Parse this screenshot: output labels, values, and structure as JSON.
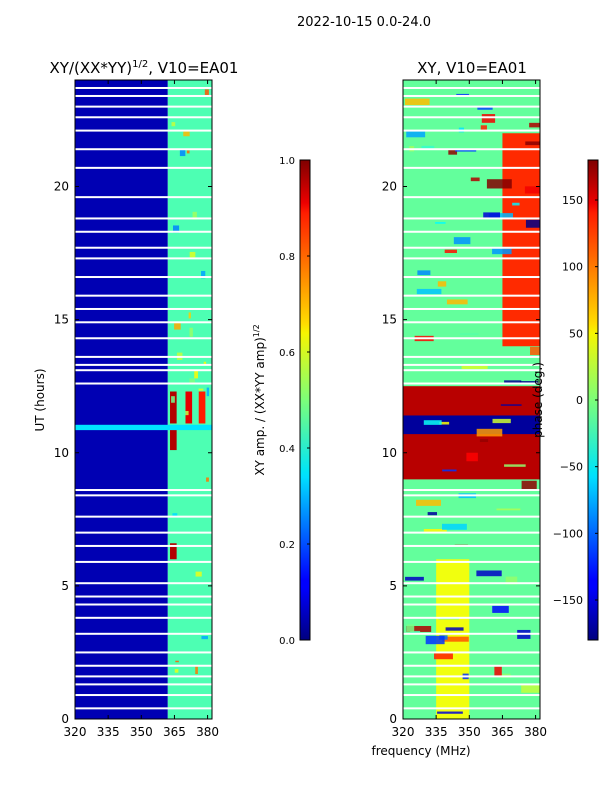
{
  "chart_data": {
    "type": "heatmap",
    "suptitle": "2022-10-15 0.0-24.0",
    "shared_xlabel": "frequency (MHz)",
    "panels": [
      {
        "title_main": "XY/(XX*YY)",
        "title_sup": "1/2",
        "title_tail": ", V10=EA01",
        "xlabel": "",
        "ylabel": "UT (hours)",
        "xlim": [
          320,
          382
        ],
        "ylim": [
          0,
          24
        ],
        "xticks": [
          "320",
          "335",
          "350",
          "365",
          "380"
        ],
        "xtick_values": [
          320,
          335,
          350,
          365,
          380
        ],
        "yticks": [
          "0",
          "5",
          "10",
          "15",
          "20"
        ],
        "ytick_values": [
          0,
          5,
          10,
          15,
          20
        ],
        "colorbar": {
          "label_main": "XY amp. / (XX*YY amp)",
          "label_sup": "1/2",
          "range": [
            0.0,
            1.0
          ],
          "ticks": [
            "0.0",
            "0.2",
            "0.4",
            "0.6",
            "0.8",
            "1.0"
          ],
          "tick_values": [
            0.0,
            0.2,
            0.4,
            0.6,
            0.8,
            1.0
          ],
          "colormap": "jet"
        },
        "approx_cells": [
          {
            "freq_range": [
              320,
              362
            ],
            "ut_range": [
              0,
              24
            ],
            "value": 0.05
          },
          {
            "freq_range": [
              362,
              382
            ],
            "ut_range": [
              0,
              24
            ],
            "value": 0.45
          },
          {
            "freq_range": [
              363,
              366
            ],
            "ut_range": [
              6.0,
              6.6
            ],
            "value": 0.95
          },
          {
            "freq_range": [
              363,
              366
            ],
            "ut_range": [
              10.1,
              10.9
            ],
            "value": 0.95
          },
          {
            "freq_range": [
              363,
              366
            ],
            "ut_range": [
              11.1,
              12.3
            ],
            "value": 0.95
          },
          {
            "freq_range": [
              370,
              373
            ],
            "ut_range": [
              11.1,
              12.3
            ],
            "value": 0.9
          },
          {
            "freq_range": [
              376,
              379
            ],
            "ut_range": [
              11.1,
              12.3
            ],
            "value": 0.85
          },
          {
            "freq_range": [
              320,
              382
            ],
            "ut_range": [
              10.85,
              11.05
            ],
            "value": 0.35
          }
        ],
        "flagged_ut_hours": [
          0.4,
          0.9,
          1.3,
          1.6,
          2.0,
          2.5,
          3.2,
          3.8,
          4.3,
          4.6,
          5.1,
          5.9,
          6.5,
          7.0,
          7.6,
          8.4,
          8.6,
          12.6,
          13.1,
          13.3,
          13.6,
          14.3,
          14.9,
          15.4,
          15.9,
          16.6,
          17.3,
          17.7,
          18.3,
          18.8,
          19.6,
          20.7,
          21.4,
          22.1,
          22.6,
          23.0,
          23.4,
          23.7
        ]
      },
      {
        "title_main": "XY, V10=EA01",
        "title_sup": "",
        "title_tail": "",
        "xlabel": "",
        "ylabel": "",
        "xlim": [
          320,
          382
        ],
        "ylim": [
          0,
          24
        ],
        "xticks": [
          "320",
          "335",
          "350",
          "365",
          "380"
        ],
        "xtick_values": [
          320,
          335,
          350,
          365,
          380
        ],
        "yticks": [
          "0",
          "5",
          "10",
          "15",
          "20"
        ],
        "ytick_values": [
          0,
          5,
          10,
          15,
          20
        ],
        "colorbar": {
          "label_main": "phase (deg.)",
          "label_sup": "",
          "range": [
            -180,
            180
          ],
          "ticks": [
            "−150",
            "−100",
            "−50",
            "0",
            "50",
            "100",
            "150"
          ],
          "tick_values": [
            -150,
            -100,
            -50,
            0,
            50,
            100,
            150
          ],
          "colormap": "jet"
        },
        "approx_cells": [
          {
            "freq_range": [
              320,
              382
            ],
            "ut_range": [
              0,
              24
            ],
            "value": -10
          },
          {
            "freq_range": [
              320,
              382
            ],
            "ut_range": [
              9.0,
              12.5
            ],
            "value": 160
          },
          {
            "freq_range": [
              320,
              382
            ],
            "ut_range": [
              10.7,
              11.4
            ],
            "value": -170
          },
          {
            "freq_range": [
              335,
              350
            ],
            "ut_range": [
              0,
              6
            ],
            "value": 40
          },
          {
            "freq_range": [
              365,
              382
            ],
            "ut_range": [
              14,
              22
            ],
            "value": 120
          }
        ],
        "flagged_ut_hours": [
          0.4,
          0.9,
          1.3,
          1.6,
          2.0,
          2.5,
          3.2,
          3.8,
          4.3,
          4.6,
          5.1,
          5.9,
          6.5,
          7.0,
          7.6,
          8.4,
          8.6,
          12.6,
          13.1,
          13.3,
          13.6,
          14.3,
          14.9,
          15.4,
          15.9,
          16.6,
          17.3,
          17.7,
          18.3,
          18.8,
          19.6,
          20.7,
          21.4,
          22.1,
          22.6,
          23.0,
          23.4,
          23.7
        ]
      }
    ]
  }
}
